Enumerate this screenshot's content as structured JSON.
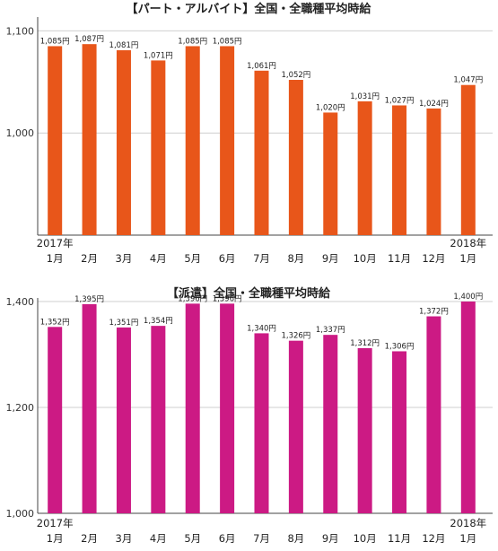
{
  "colors": {
    "chart1_bar": "#E8561A",
    "chart2_bar": "#CC1A84"
  },
  "chart_data": [
    {
      "type": "bar",
      "title": "【パート・アルバイト】全国・全職種平均時給",
      "categories": [
        "2017年 1月",
        "2月",
        "3月",
        "4月",
        "5月",
        "6月",
        "7月",
        "8月",
        "9月",
        "10月",
        "11月",
        "12月",
        "2018年 1月"
      ],
      "x_top_labels": [
        "2017年",
        "",
        "",
        "",
        "",
        "",
        "",
        "",
        "",
        "",
        "",
        "",
        "2018年"
      ],
      "x_bottom_labels": [
        "1月",
        "2月",
        "3月",
        "4月",
        "5月",
        "6月",
        "7月",
        "8月",
        "9月",
        "10月",
        "11月",
        "12月",
        "1月"
      ],
      "values": [
        1085,
        1087,
        1081,
        1071,
        1085,
        1085,
        1061,
        1052,
        1020,
        1031,
        1027,
        1024,
        1047
      ],
      "data_labels": [
        "1,085円",
        "1,087円",
        "1,081円",
        "1,071円",
        "1,085円",
        "1,085円",
        "1,061円",
        "1,052円",
        "1,020円",
        "1,031円",
        "1,027円",
        "1,024円",
        "1,047円"
      ],
      "yticks": [
        1000,
        1100
      ],
      "ytick_labels": [
        "1,000",
        "1,100"
      ],
      "ylim": [
        900,
        1110
      ],
      "grid": true
    },
    {
      "type": "bar",
      "title": "【派遣】全国・全職種平均時給",
      "categories": [
        "2017年 1月",
        "2月",
        "3月",
        "4月",
        "5月",
        "6月",
        "7月",
        "8月",
        "9月",
        "10月",
        "11月",
        "12月",
        "2018年 1月"
      ],
      "x_top_labels": [
        "2017年",
        "",
        "",
        "",
        "",
        "",
        "",
        "",
        "",
        "",
        "",
        "",
        "2018年"
      ],
      "x_bottom_labels": [
        "1月",
        "2月",
        "3月",
        "4月",
        "5月",
        "6月",
        "7月",
        "8月",
        "9月",
        "10月",
        "11月",
        "12月",
        "1月"
      ],
      "values": [
        1352,
        1395,
        1351,
        1354,
        1396,
        1396,
        1340,
        1326,
        1337,
        1312,
        1306,
        1372,
        1400
      ],
      "data_labels": [
        "1,352円",
        "1,395円",
        "1,351円",
        "1,354円",
        "1,396円",
        "1,396円",
        "1,340円",
        "1,326円",
        "1,337円",
        "1,312円",
        "1,306円",
        "1,372円",
        "1,400円"
      ],
      "yticks": [
        1000,
        1200,
        1400
      ],
      "ytick_labels": [
        "1,000",
        "1,200",
        "1,400"
      ],
      "ylim": [
        1000,
        1400
      ],
      "grid": true
    }
  ]
}
